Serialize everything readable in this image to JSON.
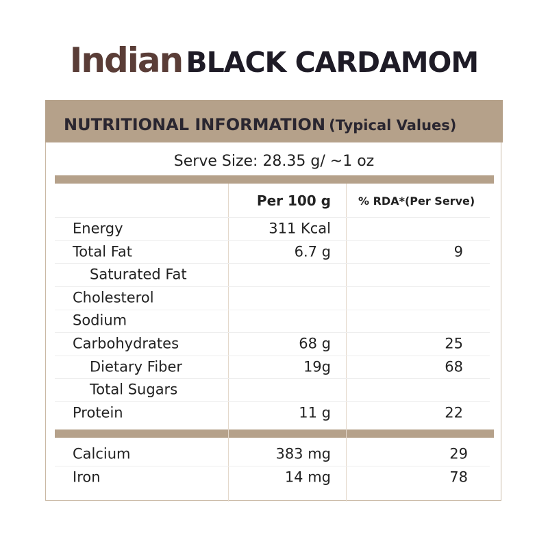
{
  "title": {
    "brand": "Indian",
    "product": "BLACK CARDAMOM"
  },
  "panel": {
    "heading": "NUTRITIONAL INFORMATION",
    "heading_note": "(Typical Values)",
    "serve_size": "Serve Size: 28.35 g/ ~1 oz",
    "columns": [
      "Per 100 g",
      "% RDA*(Per Serve)"
    ],
    "sections": [
      {
        "rows": [
          {
            "nutrient": "Energy",
            "per_100g": "311 Kcal"
          },
          {
            "nutrient": "Total Fat",
            "per_100g": "6.7 g",
            "rda": "9",
            "sub_rows": [
              {
                "nutrient": "Saturated Fat"
              }
            ]
          },
          {
            "nutrient": "Cholesterol"
          },
          {
            "nutrient": "Sodium"
          },
          {
            "nutrient": "Carbohydrates",
            "per_100g": "68 g",
            "rda": "25",
            "sub_rows": [
              {
                "nutrient": "Dietary Fiber",
                "per_100g": "19g",
                "rda": "68"
              },
              {
                "nutrient": "Total Sugars"
              }
            ]
          },
          {
            "nutrient": "Protein",
            "per_100g": "11 g",
            "rda": "22"
          }
        ]
      },
      {
        "rows": [
          {
            "nutrient": "Calcium",
            "per_100g": "383 mg",
            "rda": "29"
          },
          {
            "nutrient": "Iron",
            "per_100g": "14 mg",
            "rda": "78"
          }
        ]
      }
    ]
  }
}
